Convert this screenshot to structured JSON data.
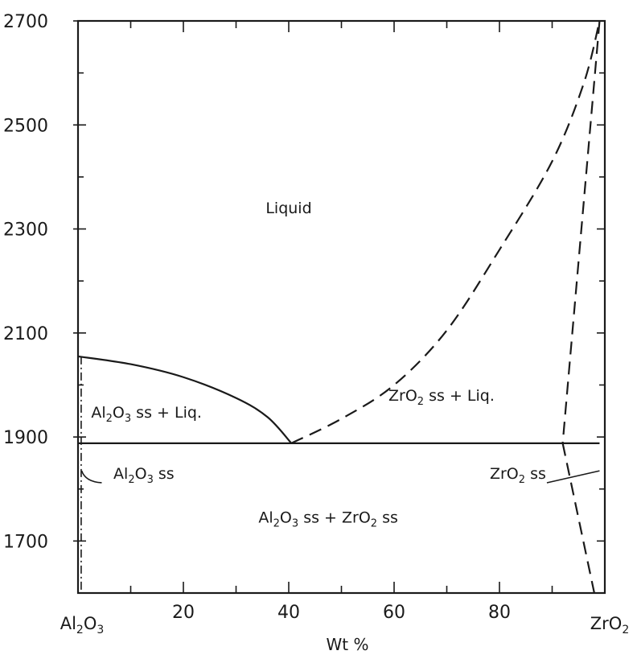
{
  "chart_data": {
    "type": "line",
    "title": "",
    "xlabel": "Wt %",
    "ylabel": "",
    "xlim": [
      0,
      100
    ],
    "ylim": [
      1600,
      2700
    ],
    "x_ticks": [
      20,
      40,
      60,
      80
    ],
    "x_ticks_minor": [
      10,
      30,
      50,
      70,
      90
    ],
    "y_ticks": [
      1700,
      1900,
      2100,
      2300,
      2500,
      2700
    ],
    "y_ticks_minor": [
      1800,
      2000,
      2200,
      2400,
      2600
    ],
    "x_end_labels": {
      "left": {
        "base": "Al",
        "sub1": "2",
        "mid": "O",
        "sub2": "3"
      },
      "right": {
        "base": "ZrO",
        "sub1": "2",
        "mid": "",
        "sub2": ""
      }
    },
    "grid": false,
    "series": [
      {
        "style": "solid",
        "x": [
          0,
          10,
          20,
          30,
          36,
          40.5
        ],
        "y": [
          2055,
          2040,
          2015,
          1975,
          1938,
          1888
        ]
      },
      {
        "style": "dashed",
        "x": [
          40.5,
          50,
          60,
          70,
          80,
          90,
          96,
          99
        ],
        "y": [
          1888,
          1935,
          2000,
          2105,
          2260,
          2430,
          2580,
          2700
        ]
      },
      {
        "style": "solid",
        "x": [
          0,
          99
        ],
        "y": [
          1888,
          1888
        ]
      },
      {
        "style": "dashed",
        "x": [
          99,
          92
        ],
        "y": [
          2700,
          1888
        ]
      },
      {
        "style": "dashed",
        "x": [
          92,
          98
        ],
        "y": [
          1888,
          1600
        ]
      },
      {
        "style": "dashdot",
        "x": [
          0.6,
          0.6
        ],
        "y": [
          2055,
          1600
        ]
      }
    ],
    "annotations": [
      {
        "id": "liquid",
        "parts": [
          {
            "t": "Liquid"
          }
        ],
        "x": 40,
        "y": 2330
      },
      {
        "id": "zro2-liq",
        "parts": [
          {
            "t": "ZrO"
          },
          {
            "t": "2",
            "sub": true
          },
          {
            "t": " ss + Liq."
          }
        ],
        "x": 69,
        "y": 1970
      },
      {
        "id": "al2o3-liq",
        "parts": [
          {
            "t": "Al"
          },
          {
            "t": "2",
            "sub": true
          },
          {
            "t": "O"
          },
          {
            "t": "3",
            "sub": true
          },
          {
            "t": " ss + Liq."
          }
        ],
        "x": 13,
        "y": 1937
      },
      {
        "id": "al2o3-ss",
        "parts": [
          {
            "t": "Al"
          },
          {
            "t": "2",
            "sub": true
          },
          {
            "t": "O"
          },
          {
            "t": "3",
            "sub": true
          },
          {
            "t": " ss"
          }
        ],
        "x": 12.5,
        "y": 1820
      },
      {
        "id": "zro2-ss",
        "parts": [
          {
            "t": "ZrO"
          },
          {
            "t": "2",
            "sub": true
          },
          {
            "t": " ss"
          }
        ],
        "x": 83.5,
        "y": 1820
      },
      {
        "id": "two-phase-ss",
        "parts": [
          {
            "t": "Al"
          },
          {
            "t": "2",
            "sub": true
          },
          {
            "t": "O"
          },
          {
            "t": "3",
            "sub": true
          },
          {
            "t": " ss  +  ZrO"
          },
          {
            "t": "2",
            "sub": true
          },
          {
            "t": " ss"
          }
        ],
        "x": 47.5,
        "y": 1735
      }
    ]
  }
}
